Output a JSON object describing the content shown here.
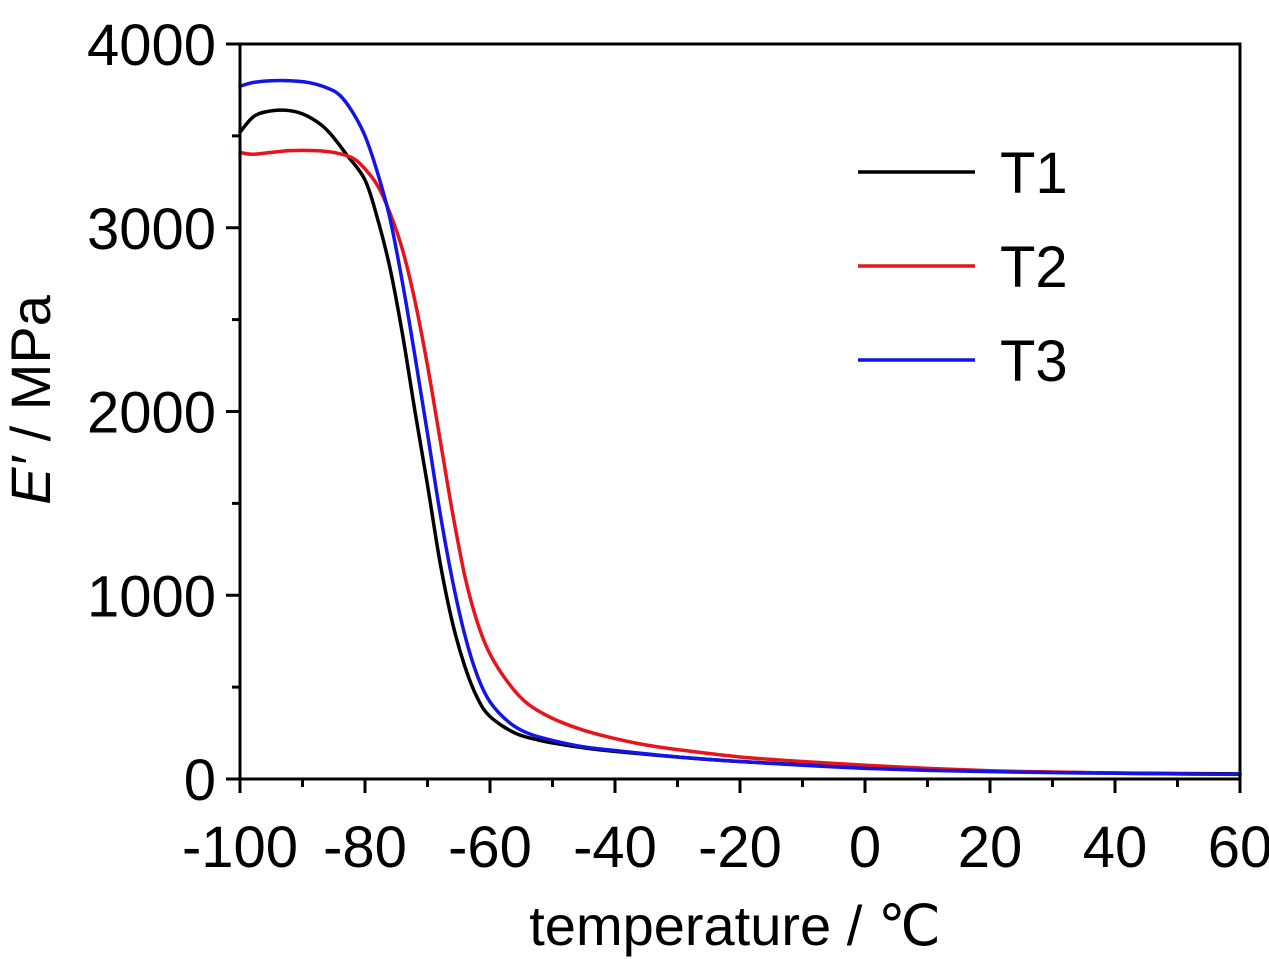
{
  "chart_data": {
    "type": "line",
    "title": "",
    "xlabel": "temperature / ℃",
    "ylabel_italic": "E′",
    "ylabel_rest": " / MPa",
    "xlim": [
      -100,
      60
    ],
    "ylim": [
      0,
      4000
    ],
    "x_ticks": [
      -100,
      -80,
      -60,
      -40,
      -20,
      0,
      20,
      40,
      60
    ],
    "y_ticks": [
      0,
      1000,
      2000,
      3000,
      4000
    ],
    "x_tick_labels": [
      "-100",
      "-80",
      "-60",
      "-40",
      "-20",
      "0",
      "20",
      "40",
      "60"
    ],
    "y_tick_labels": [
      "0",
      "1000",
      "2000",
      "3000",
      "4000"
    ],
    "grid": false,
    "legend": {
      "position": "top-right",
      "entries": [
        "T1",
        "T2",
        "T3"
      ]
    },
    "series": [
      {
        "name": "T1",
        "color": "#000000",
        "points": [
          [
            -100,
            3520
          ],
          [
            -98,
            3600
          ],
          [
            -96,
            3630
          ],
          [
            -93,
            3640
          ],
          [
            -90,
            3620
          ],
          [
            -87,
            3560
          ],
          [
            -85,
            3490
          ],
          [
            -83,
            3400
          ],
          [
            -80,
            3260
          ],
          [
            -78,
            3050
          ],
          [
            -76,
            2780
          ],
          [
            -74,
            2420
          ],
          [
            -72,
            2000
          ],
          [
            -70,
            1600
          ],
          [
            -68,
            1180
          ],
          [
            -66,
            850
          ],
          [
            -64,
            610
          ],
          [
            -62,
            440
          ],
          [
            -60,
            340
          ],
          [
            -56,
            250
          ],
          [
            -52,
            210
          ],
          [
            -48,
            185
          ],
          [
            -44,
            165
          ],
          [
            -40,
            150
          ],
          [
            -30,
            120
          ],
          [
            -20,
            95
          ],
          [
            -10,
            78
          ],
          [
            0,
            60
          ],
          [
            10,
            50
          ],
          [
            20,
            42
          ],
          [
            30,
            37
          ],
          [
            40,
            33
          ],
          [
            50,
            30
          ],
          [
            60,
            28
          ]
        ]
      },
      {
        "name": "T2",
        "color": "#e8141c",
        "points": [
          [
            -100,
            3410
          ],
          [
            -98,
            3400
          ],
          [
            -95,
            3410
          ],
          [
            -92,
            3420
          ],
          [
            -88,
            3420
          ],
          [
            -85,
            3410
          ],
          [
            -82,
            3380
          ],
          [
            -80,
            3320
          ],
          [
            -78,
            3230
          ],
          [
            -76,
            3080
          ],
          [
            -74,
            2880
          ],
          [
            -72,
            2600
          ],
          [
            -70,
            2250
          ],
          [
            -68,
            1850
          ],
          [
            -66,
            1450
          ],
          [
            -64,
            1100
          ],
          [
            -62,
            850
          ],
          [
            -60,
            680
          ],
          [
            -57,
            520
          ],
          [
            -54,
            410
          ],
          [
            -50,
            330
          ],
          [
            -45,
            265
          ],
          [
            -40,
            220
          ],
          [
            -35,
            185
          ],
          [
            -30,
            160
          ],
          [
            -20,
            120
          ],
          [
            -10,
            95
          ],
          [
            0,
            75
          ],
          [
            10,
            58
          ],
          [
            20,
            45
          ],
          [
            30,
            38
          ],
          [
            40,
            32
          ],
          [
            50,
            28
          ],
          [
            60,
            25
          ]
        ]
      },
      {
        "name": "T3",
        "color": "#1414e6",
        "points": [
          [
            -100,
            3770
          ],
          [
            -98,
            3790
          ],
          [
            -95,
            3800
          ],
          [
            -92,
            3800
          ],
          [
            -89,
            3790
          ],
          [
            -86,
            3760
          ],
          [
            -84,
            3720
          ],
          [
            -82,
            3630
          ],
          [
            -80,
            3500
          ],
          [
            -78,
            3300
          ],
          [
            -76,
            3050
          ],
          [
            -74,
            2700
          ],
          [
            -72,
            2300
          ],
          [
            -70,
            1880
          ],
          [
            -68,
            1450
          ],
          [
            -66,
            1080
          ],
          [
            -64,
            780
          ],
          [
            -62,
            560
          ],
          [
            -60,
            420
          ],
          [
            -57,
            310
          ],
          [
            -54,
            250
          ],
          [
            -50,
            210
          ],
          [
            -45,
            175
          ],
          [
            -40,
            155
          ],
          [
            -30,
            120
          ],
          [
            -20,
            95
          ],
          [
            -10,
            75
          ],
          [
            0,
            58
          ],
          [
            10,
            47
          ],
          [
            20,
            40
          ],
          [
            30,
            35
          ],
          [
            40,
            31
          ],
          [
            50,
            28
          ],
          [
            60,
            26
          ]
        ]
      }
    ]
  }
}
